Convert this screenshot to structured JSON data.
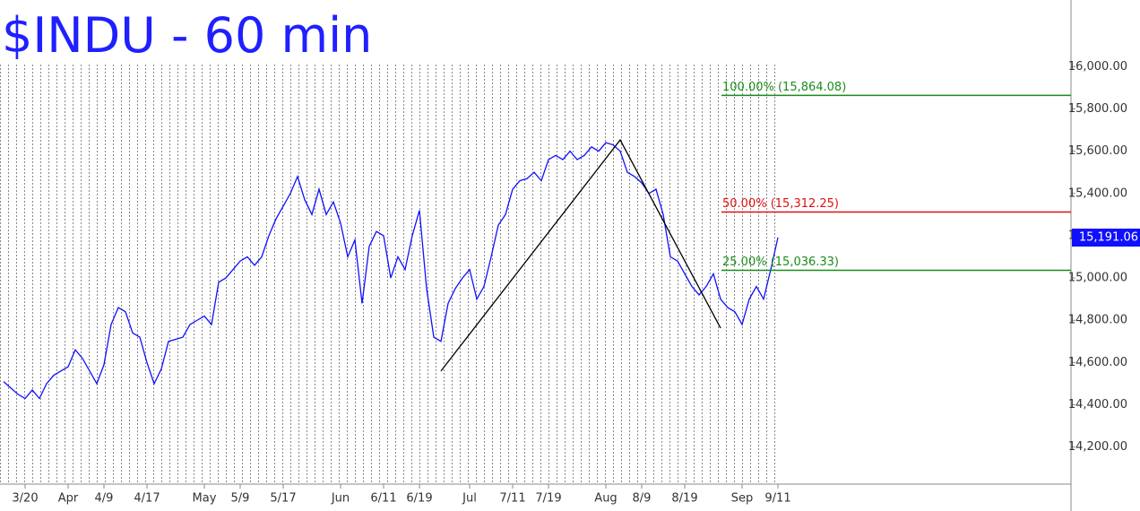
{
  "chart_data": {
    "type": "line",
    "title": "$INDU - 60 min",
    "categories": [
      null,
      null,
      null,
      "3/20",
      null,
      null,
      null,
      null,
      null,
      "Apr",
      null,
      null,
      null,
      null,
      "4/9",
      null,
      null,
      null,
      null,
      null,
      "4/17",
      null,
      null,
      null,
      null,
      null,
      null,
      null,
      "May",
      null,
      null,
      null,
      null,
      "5/9",
      null,
      null,
      null,
      null,
      null,
      "5/17",
      null,
      null,
      null,
      null,
      null,
      null,
      null,
      "Jun",
      null,
      null,
      null,
      null,
      null,
      "6/11",
      null,
      null,
      null,
      null,
      "6/19",
      null,
      null,
      null,
      null,
      null,
      null,
      "Jul",
      null,
      null,
      null,
      null,
      null,
      "7/11",
      null,
      null,
      null,
      null,
      "7/19",
      null,
      null,
      null,
      null,
      null,
      null,
      null,
      "Aug",
      null,
      null,
      null,
      null,
      "8/9",
      null,
      null,
      null,
      null,
      null,
      "8/19",
      null,
      null,
      null,
      null,
      null,
      null,
      null,
      "Sep",
      null,
      null,
      null,
      null,
      "9/11"
    ],
    "series": [
      {
        "color": "#1010ff",
        "values": [
          14510,
          14480,
          14450,
          14430,
          14470,
          14430,
          14500,
          14540,
          14560,
          14580,
          14660,
          14620,
          14560,
          14500,
          14590,
          14780,
          14860,
          14840,
          14740,
          14720,
          14600,
          14500,
          14570,
          14700,
          14710,
          14720,
          14780,
          14800,
          14820,
          14780,
          14980,
          15000,
          15040,
          15080,
          15100,
          15060,
          15100,
          15200,
          15280,
          15340,
          15400,
          15480,
          15370,
          15300,
          15420,
          15300,
          15360,
          15260,
          15100,
          15180,
          14880,
          15150,
          15220,
          15200,
          15000,
          15100,
          15040,
          15200,
          15320,
          14950,
          14720,
          14700,
          14880,
          14950,
          15000,
          15040,
          14900,
          14960,
          15100,
          15250,
          15300,
          15420,
          15460,
          15470,
          15500,
          15460,
          15560,
          15580,
          15560,
          15600,
          15560,
          15580,
          15620,
          15600,
          15640,
          15630,
          15600,
          15500,
          15480,
          15450,
          15400,
          15420,
          15300,
          15100,
          15080,
          15020,
          14960,
          14920,
          14960,
          15020,
          14900,
          14860,
          14840,
          14780,
          14900,
          14960,
          14900,
          15040,
          15191.06
        ]
      }
    ],
    "pattern": {
      "color": "#000000",
      "x": [
        61,
        86,
        100
      ],
      "values": [
        14560,
        15653,
        14763
      ]
    },
    "levels": [
      {
        "value": 15864.08,
        "label": "100.00% (15,864.08)",
        "color": "#1a8c1a"
      },
      {
        "value": 15312.25,
        "label": "50.00% (15,312.25)",
        "color": "#e01010"
      },
      {
        "value": 15036.33,
        "label": "25.00% (15,036.33)",
        "color": "#1a8c1a"
      }
    ],
    "last_price": {
      "value": 15191.06,
      "label": "15,191.06",
      "color": "#1010ff"
    },
    "ylim": [
      14025,
      16315
    ],
    "yticks": [
      {
        "value": 14200,
        "label": "14,200.00"
      },
      {
        "value": 14400,
        "label": "14,400.00"
      },
      {
        "value": 14600,
        "label": "14,600.00"
      },
      {
        "value": 14800,
        "label": "14,800.00"
      },
      {
        "value": 15000,
        "label": "15,000.00"
      },
      {
        "value": 15200,
        "label": "15,200.00"
      },
      {
        "value": 15400,
        "label": "15,400.00"
      },
      {
        "value": 15600,
        "label": "15,600.00"
      },
      {
        "value": 15800,
        "label": "15,800.00"
      },
      {
        "value": 16000,
        "label": "16,000.00"
      }
    ]
  }
}
